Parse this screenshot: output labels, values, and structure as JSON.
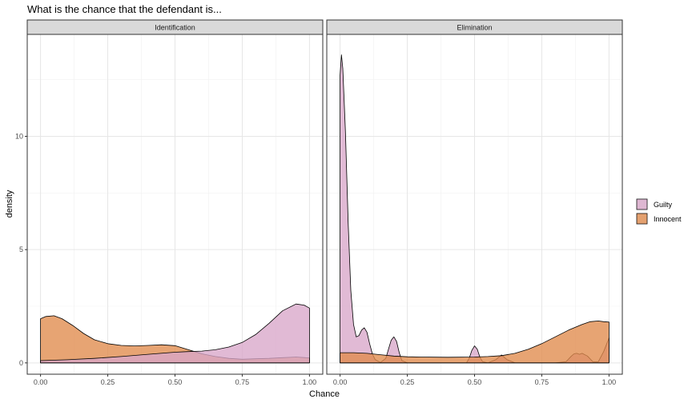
{
  "chart_data": {
    "type": "area",
    "title": "What is the chance that the defendant is...",
    "xlabel": "Chance",
    "ylabel": "density",
    "xlim": [
      0,
      1
    ],
    "ylim": [
      -0.5,
      14.5
    ],
    "x_ticks": [
      0,
      0.25,
      0.5,
      0.75,
      1
    ],
    "x_tick_labels": [
      "0.00",
      "0.25",
      "0.50",
      "0.75",
      "1.00"
    ],
    "y_ticks": [
      0,
      5,
      10
    ],
    "y_tick_labels": [
      "0",
      "5",
      "10"
    ],
    "grid": true,
    "legend_position": "right",
    "colors": {
      "Guilty": "#D8A6C9",
      "Innocent": "#E08A4C"
    },
    "legend": [
      "Guilty",
      "Innocent"
    ],
    "panels": [
      {
        "label": "Identification",
        "series": [
          {
            "name": "Innocent",
            "x": [
              0,
              0.02,
              0.05,
              0.08,
              0.12,
              0.16,
              0.2,
              0.25,
              0.3,
              0.35,
              0.4,
              0.45,
              0.5,
              0.55,
              0.6,
              0.65,
              0.7,
              0.75,
              0.8,
              0.85,
              0.9,
              0.95,
              1
            ],
            "y": [
              1.95,
              2.05,
              2.08,
              1.95,
              1.65,
              1.3,
              1.02,
              0.85,
              0.77,
              0.75,
              0.77,
              0.8,
              0.76,
              0.58,
              0.4,
              0.28,
              0.2,
              0.16,
              0.18,
              0.2,
              0.23,
              0.26,
              0.22
            ]
          },
          {
            "name": "Guilty",
            "x": [
              0,
              0.1,
              0.2,
              0.3,
              0.4,
              0.5,
              0.55,
              0.6,
              0.65,
              0.7,
              0.75,
              0.8,
              0.85,
              0.9,
              0.95,
              0.98,
              1
            ],
            "y": [
              0.1,
              0.14,
              0.2,
              0.28,
              0.38,
              0.47,
              0.5,
              0.52,
              0.58,
              0.7,
              0.9,
              1.25,
              1.75,
              2.3,
              2.6,
              2.55,
              2.42
            ]
          }
        ]
      },
      {
        "label": "Elimination",
        "series": [
          {
            "name": "Guilty",
            "x": [
              0,
              0.005,
              0.01,
              0.02,
              0.03,
              0.04,
              0.05,
              0.06,
              0.07,
              0.08,
              0.09,
              0.1,
              0.11,
              0.12,
              0.13,
              0.15,
              0.17,
              0.18,
              0.19,
              0.2,
              0.21,
              0.22,
              0.23,
              0.25,
              0.3,
              0.4,
              0.47,
              0.48,
              0.49,
              0.5,
              0.51,
              0.52,
              0.53,
              0.55,
              0.58,
              0.6,
              0.62,
              0.65,
              0.7,
              0.75,
              0.8,
              0.84,
              0.86,
              0.87,
              0.88,
              0.89,
              0.9,
              0.92,
              0.94,
              0.96,
              0.98,
              1
            ],
            "y": [
              12.7,
              13.6,
              13.0,
              10.2,
              6.2,
              3.2,
              1.7,
              1.15,
              1.2,
              1.45,
              1.55,
              1.35,
              0.85,
              0.4,
              0.15,
              0.02,
              0.2,
              0.6,
              1.0,
              1.15,
              0.95,
              0.45,
              0.1,
              0.0,
              0.0,
              0.0,
              0.0,
              0.2,
              0.55,
              0.75,
              0.6,
              0.25,
              0.05,
              0.0,
              0.15,
              0.35,
              0.15,
              0.0,
              0.0,
              0.0,
              0.0,
              0.05,
              0.3,
              0.4,
              0.42,
              0.38,
              0.42,
              0.3,
              0.05,
              0.05,
              0.5,
              1.1
            ]
          },
          {
            "name": "Innocent",
            "x": [
              0,
              0.05,
              0.1,
              0.15,
              0.2,
              0.25,
              0.3,
              0.4,
              0.5,
              0.55,
              0.6,
              0.65,
              0.7,
              0.75,
              0.8,
              0.85,
              0.9,
              0.93,
              0.96,
              0.98,
              1
            ],
            "y": [
              0.45,
              0.45,
              0.42,
              0.36,
              0.3,
              0.27,
              0.26,
              0.25,
              0.26,
              0.28,
              0.32,
              0.42,
              0.6,
              0.85,
              1.15,
              1.45,
              1.7,
              1.82,
              1.85,
              1.82,
              1.8
            ]
          }
        ]
      }
    ]
  }
}
